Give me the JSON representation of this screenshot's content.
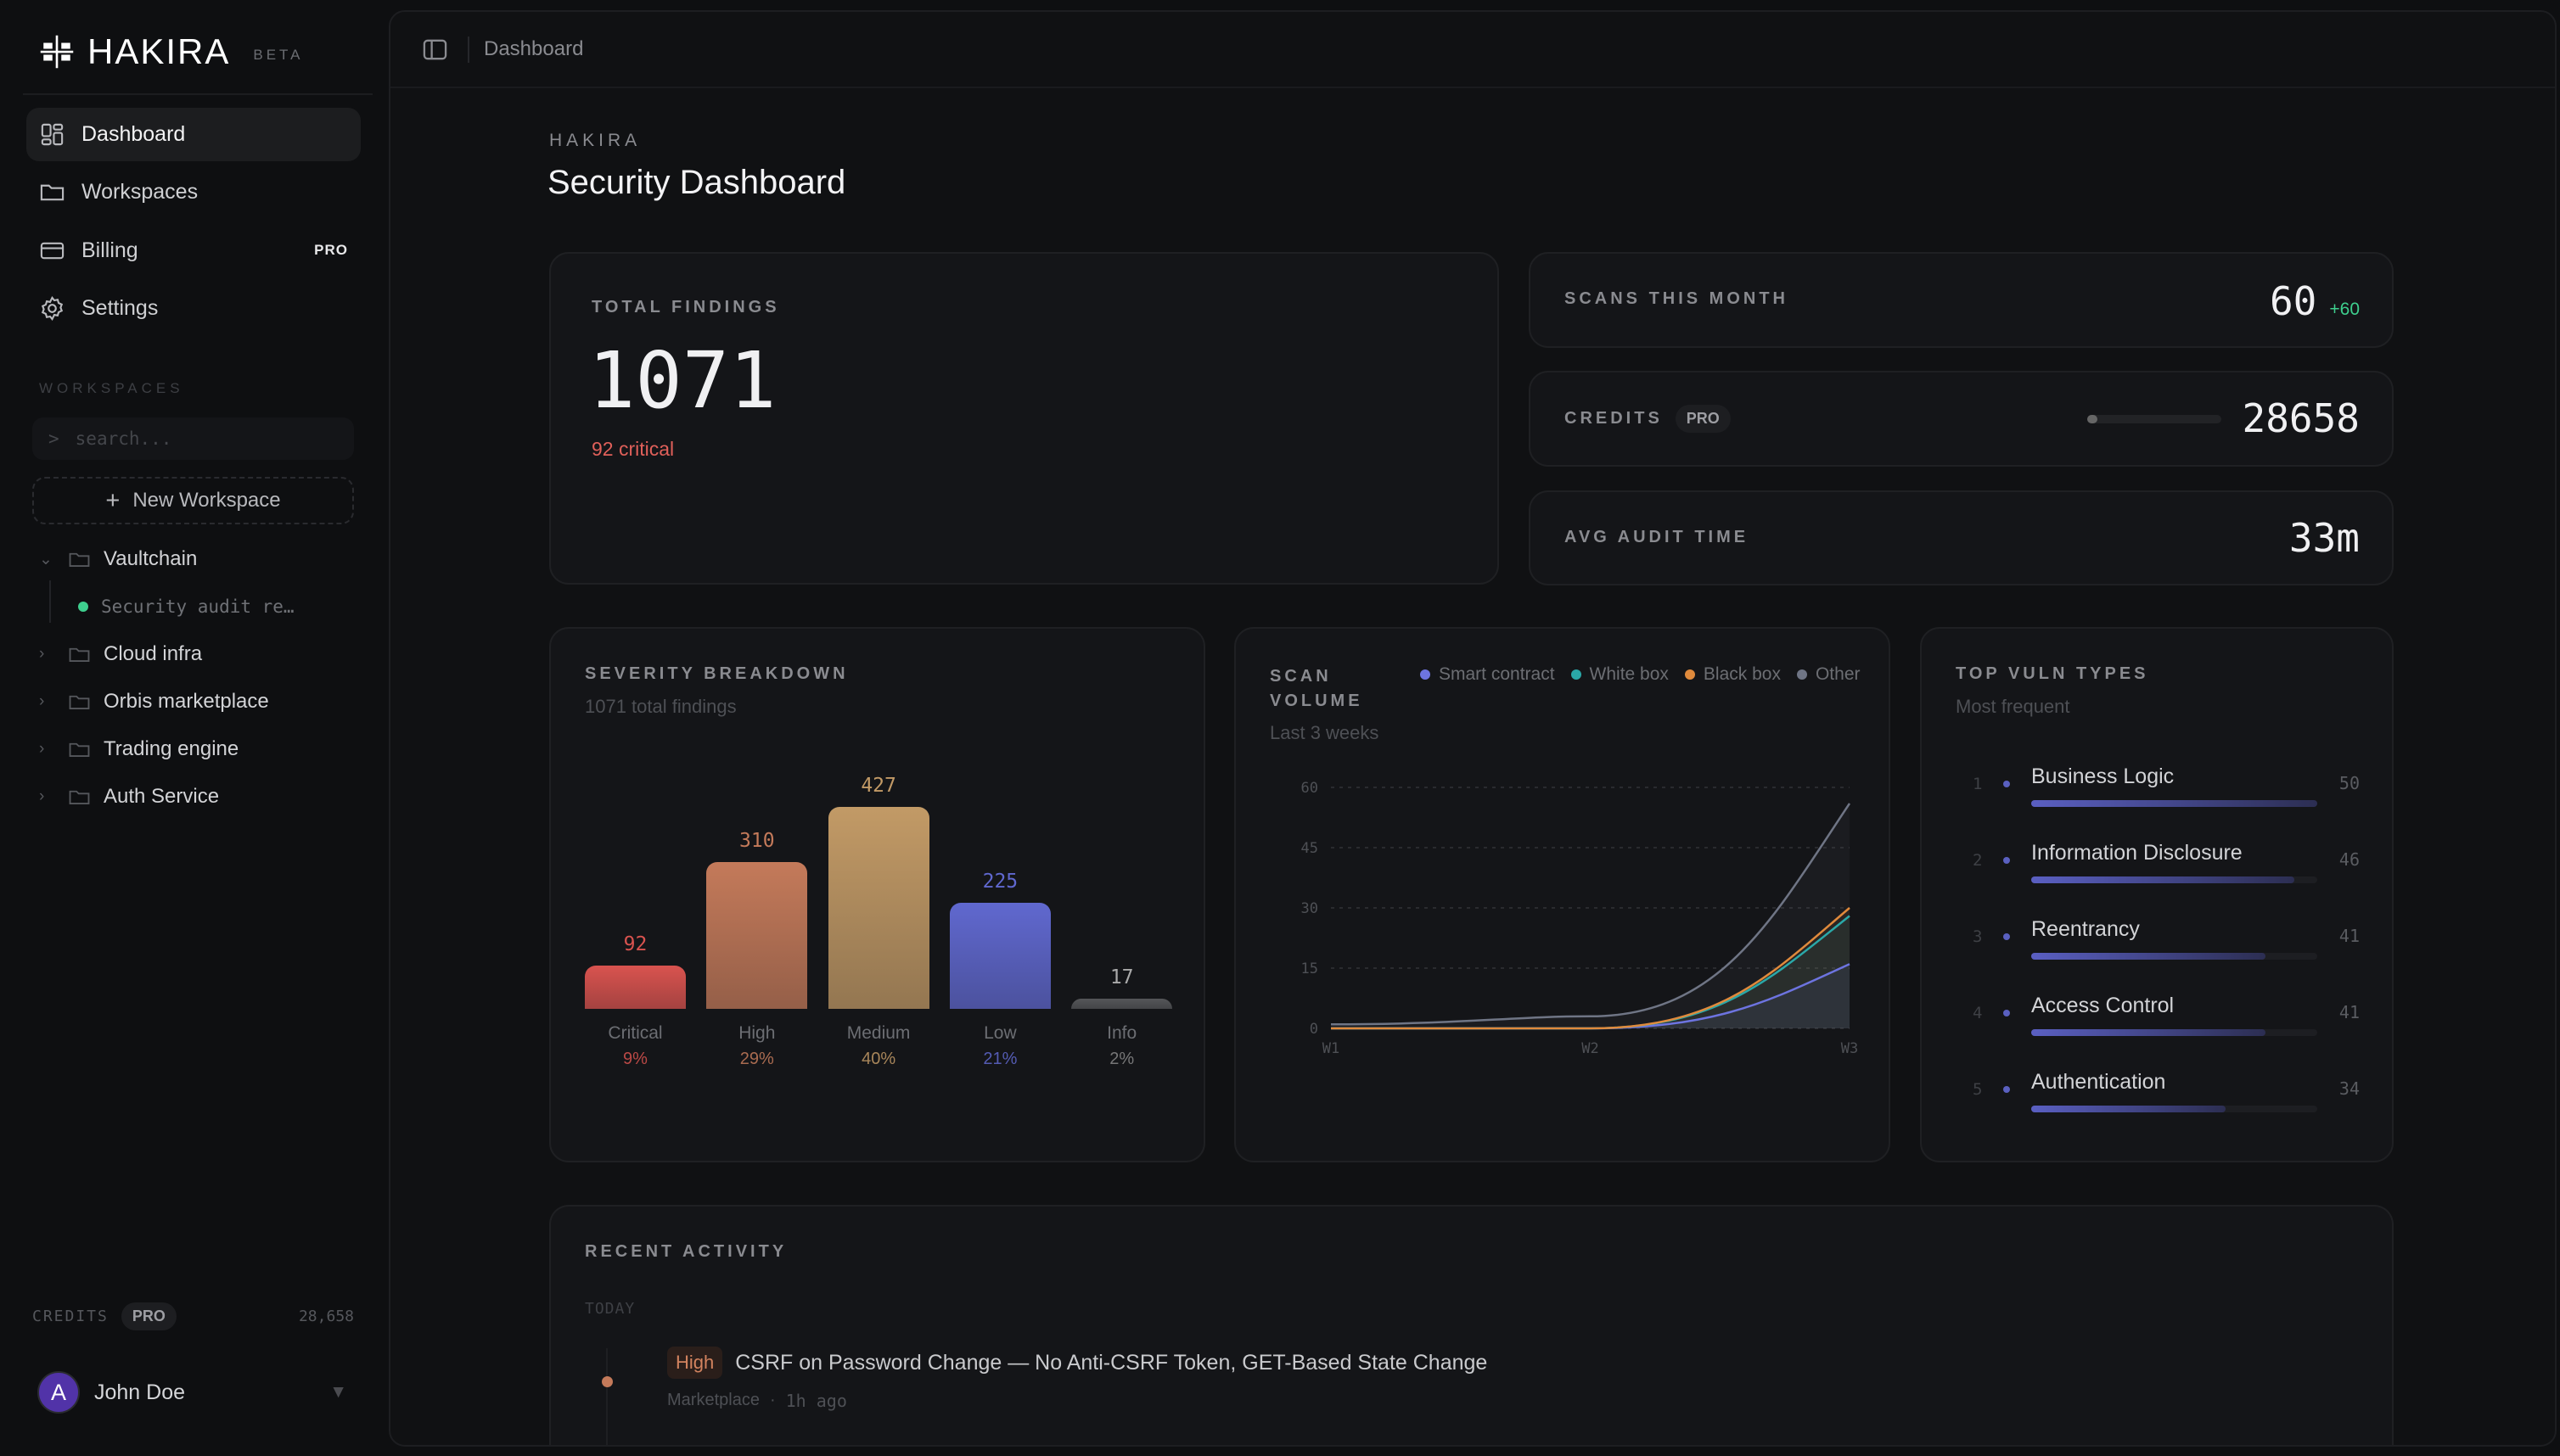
{
  "sidebar": {
    "logo": "HAKIRA",
    "beta": "BETA",
    "nav": [
      {
        "label": "Dashboard",
        "icon": "grid-icon",
        "active": true
      },
      {
        "label": "Workspaces",
        "icon": "folder-icon"
      },
      {
        "label": "Billing",
        "icon": "credit-card-icon",
        "badge": "PRO"
      },
      {
        "label": "Settings",
        "icon": "gear-icon"
      }
    ],
    "workspaces_heading": "WORKSPACES",
    "search_prompt": ">",
    "search_placeholder": "search...",
    "new_workspace": "New Workspace",
    "tree": [
      {
        "label": "Vaultchain",
        "expanded": true,
        "children": [
          {
            "label": "Security audit re…",
            "status_color": "#3ecf8e"
          }
        ]
      },
      {
        "label": "Cloud infra"
      },
      {
        "label": "Orbis marketplace"
      },
      {
        "label": "Trading engine"
      },
      {
        "label": "Auth Service"
      }
    ],
    "credits_label": "CREDITS",
    "credits_badge": "PRO",
    "credits_value": "28,658",
    "user": {
      "initial": "A",
      "name": "John Doe"
    }
  },
  "header": {
    "breadcrumb": "Dashboard"
  },
  "page": {
    "eyebrow": "HAKIRA",
    "title": "Security Dashboard"
  },
  "stats": {
    "total_findings": {
      "label": "TOTAL FINDINGS",
      "value": "1071",
      "sub": "92 critical"
    },
    "scans": {
      "label": "SCANS THIS MONTH",
      "value": "60",
      "delta": "+60"
    },
    "credits": {
      "label": "CREDITS",
      "badge": "PRO",
      "value": "28658",
      "progress_fraction": 0.02
    },
    "audit": {
      "label": "AVG AUDIT TIME",
      "value": "33m"
    }
  },
  "colors": {
    "critical": "#d9534f",
    "high": "#c47a5a",
    "medium": "#c29a66",
    "low": "#6068cf",
    "info": "#555659",
    "accent_green": "#3ecf8e",
    "smart": "#6d74e0",
    "white": "#2aa8a8",
    "black": "#e08a3c",
    "other": "#6f7585"
  },
  "chart_data": [
    {
      "type": "bar",
      "title": "SEVERITY BREAKDOWN",
      "subtitle": "1071 total findings",
      "categories": [
        "Critical",
        "High",
        "Medium",
        "Low",
        "Info"
      ],
      "values": [
        92,
        310,
        427,
        225,
        17
      ],
      "percents": [
        "9%",
        "29%",
        "40%",
        "21%",
        "2%"
      ]
    },
    {
      "type": "area",
      "title": "SCAN VOLUME",
      "subtitle": "Last 3 weeks",
      "stacked": true,
      "x": [
        "W1",
        "W2",
        "W3"
      ],
      "yticks": [
        0,
        15,
        30,
        45,
        60
      ],
      "ylim": [
        0,
        60
      ],
      "grid": true,
      "legend": "top",
      "series": [
        {
          "name": "Smart contract",
          "values": [
            0,
            0,
            16
          ]
        },
        {
          "name": "White box",
          "values": [
            0,
            0,
            12
          ]
        },
        {
          "name": "Black box",
          "values": [
            0,
            0,
            2
          ]
        },
        {
          "name": "Other",
          "values": [
            1,
            3,
            26
          ]
        }
      ]
    },
    {
      "type": "bar",
      "orientation": "horizontal",
      "title": "TOP VULN TYPES",
      "subtitle": "Most frequent",
      "categories": [
        "Business Logic",
        "Information Disclosure",
        "Reentrancy",
        "Access Control",
        "Authentication"
      ],
      "values": [
        50,
        46,
        41,
        41,
        34
      ],
      "ranks": [
        "1",
        "2",
        "3",
        "4",
        "5"
      ]
    }
  ],
  "activity": {
    "title": "RECENT ACTIVITY",
    "group": "TODAY",
    "items": [
      {
        "severity": "High",
        "title": "CSRF on Password Change — No Anti-CSRF Token, GET-Based State Change",
        "workspace": "Marketplace",
        "sep": "·",
        "time": "1h ago"
      }
    ]
  }
}
